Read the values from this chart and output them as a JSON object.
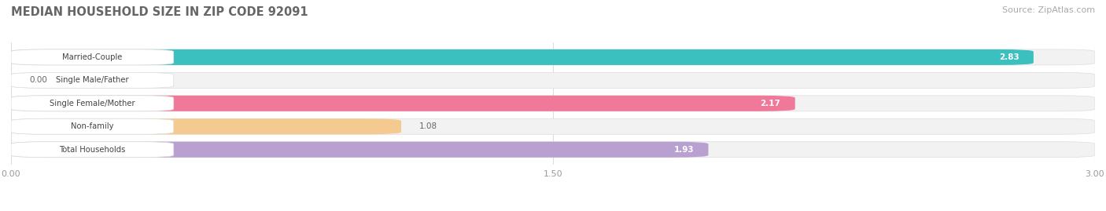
{
  "title": "MEDIAN HOUSEHOLD SIZE IN ZIP CODE 92091",
  "source": "Source: ZipAtlas.com",
  "categories": [
    "Married-Couple",
    "Single Male/Father",
    "Single Female/Mother",
    "Non-family",
    "Total Households"
  ],
  "values": [
    2.83,
    0.0,
    2.17,
    1.08,
    1.93
  ],
  "bar_colors": [
    "#3bbfbf",
    "#aabce8",
    "#f07898",
    "#f5ca90",
    "#b8a0d0"
  ],
  "bar_bg_color": "#f2f2f2",
  "xlim": [
    0,
    3.0
  ],
  "xtick_labels": [
    "0.00",
    "1.50",
    "3.00"
  ],
  "xtick_vals": [
    0.0,
    1.5,
    3.0
  ],
  "title_color": "#888888",
  "source_color": "#aaaaaa",
  "background_color": "#ffffff",
  "bar_height": 0.68,
  "label_bg_color": "#ffffff",
  "label_text_color": "#444444",
  "value_color_inside": "#ffffff",
  "value_color_outside": "#666666",
  "grid_color": "#dddddd",
  "bar_border_color": "#dddddd"
}
